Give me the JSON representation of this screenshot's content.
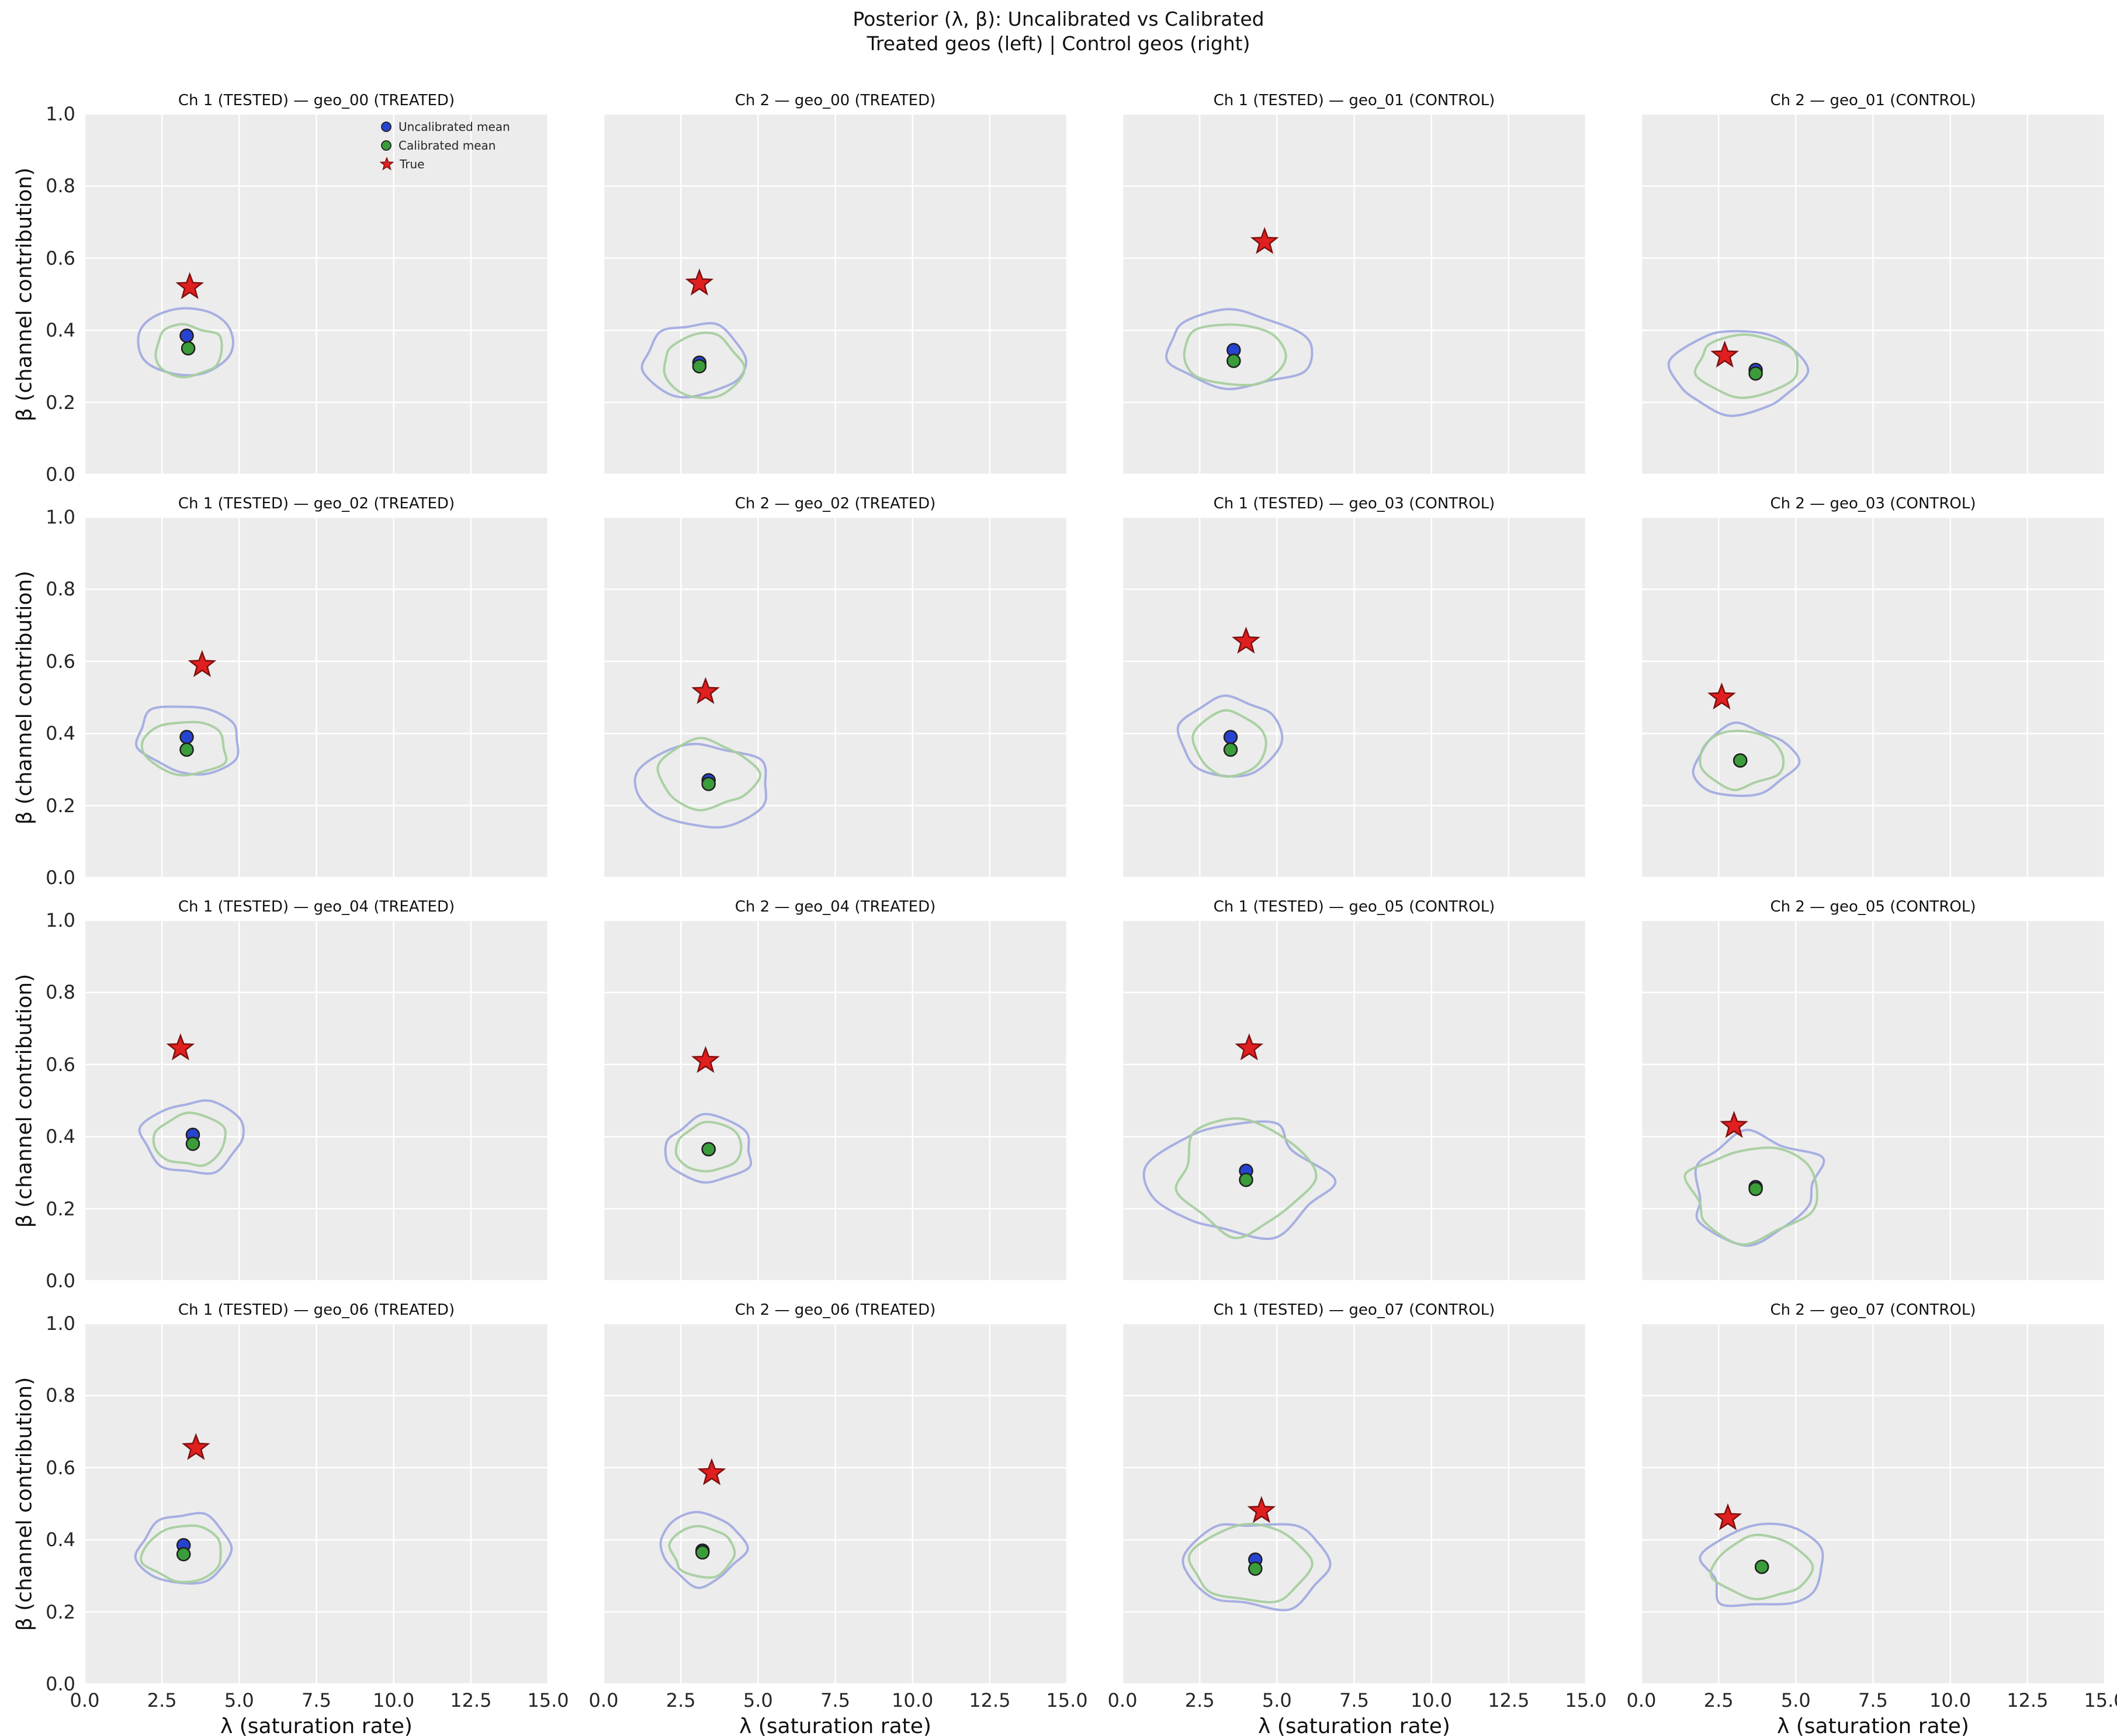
{
  "colors": {
    "plot_bg": "#ececec",
    "grid": "#ffffff",
    "uncal_mean": "#2743d0",
    "cal_mean": "#3a9d3a",
    "true_marker": "#e01f1f",
    "true_edge": "#7e1010",
    "marker_edge": "#1f1f1f",
    "uncal_contour": "#a3ace0",
    "cal_contour": "#a6cf9f",
    "text": "#262626"
  },
  "chart_data": {
    "type": "scatter",
    "grid_rows": 4,
    "grid_cols": 4,
    "title": "Posterior (λ, β): Uncalibrated vs Calibrated",
    "subtitle": "Treated geos (left) | Control geos (right)",
    "xlabel": "λ (saturation rate)",
    "ylabel": "β (channel contribution)",
    "xlim": [
      0,
      15
    ],
    "ylim": [
      0.0,
      1.0
    ],
    "xticks": [
      "0.0",
      "2.5",
      "5.0",
      "7.5",
      "10.0",
      "12.5",
      "15.0"
    ],
    "yticks": [
      "0.0",
      "0.2",
      "0.4",
      "0.6",
      "0.8",
      "1.0"
    ],
    "grid_on": true,
    "legend": [
      "Uncalibrated mean",
      "Calibrated mean",
      "True"
    ],
    "legend_position": "upper-right-of-first-subplot",
    "subplots": [
      {
        "title": "Ch 1 (TESTED) — geo_00 (TREATED)",
        "uncal_mean": [
          3.3,
          0.385
        ],
        "cal_mean": [
          3.35,
          0.35
        ],
        "true": [
          3.4,
          0.52
        ],
        "uncal_contour": {
          "c": [
            3.25,
            0.365
          ],
          "rx": 1.55,
          "ry": 0.095,
          "seed": 11,
          "wob": 0.14
        },
        "cal_contour": {
          "c": [
            3.35,
            0.345
          ],
          "rx": 1.15,
          "ry": 0.07,
          "seed": 12,
          "wob": 0.14
        }
      },
      {
        "title": "Ch 2 — geo_00 (TREATED)",
        "uncal_mean": [
          3.1,
          0.31
        ],
        "cal_mean": [
          3.1,
          0.3
        ],
        "true": [
          3.1,
          0.53
        ],
        "uncal_contour": {
          "c": [
            2.95,
            0.315
          ],
          "rx": 1.7,
          "ry": 0.1,
          "seed": 21,
          "wob": 0.16
        },
        "cal_contour": {
          "c": [
            3.15,
            0.3
          ],
          "rx": 1.35,
          "ry": 0.085,
          "seed": 22,
          "wob": 0.16
        }
      },
      {
        "title": "Ch 1 (TESTED) — geo_01 (CONTROL)",
        "uncal_mean": [
          3.6,
          0.345
        ],
        "cal_mean": [
          3.6,
          0.315
        ],
        "true": [
          4.6,
          0.645
        ],
        "uncal_contour": {
          "c": [
            3.7,
            0.345
          ],
          "rx": 2.3,
          "ry": 0.1,
          "seed": 31,
          "wob": 0.17
        },
        "cal_contour": {
          "c": [
            3.6,
            0.33
          ],
          "rx": 1.75,
          "ry": 0.085,
          "seed": 32,
          "wob": 0.15
        }
      },
      {
        "title": "Ch 2 — geo_01 (CONTROL)",
        "uncal_mean": [
          3.7,
          0.29
        ],
        "cal_mean": [
          3.7,
          0.28
        ],
        "true": [
          2.7,
          0.33
        ],
        "uncal_contour": {
          "c": [
            3.1,
            0.285
          ],
          "rx": 2.05,
          "ry": 0.115,
          "seed": 41,
          "wob": 0.17
        },
        "cal_contour": {
          "c": [
            3.4,
            0.3
          ],
          "rx": 1.6,
          "ry": 0.085,
          "seed": 42,
          "wob": 0.15
        }
      },
      {
        "title": "Ch 1 (TESTED) — geo_02 (TREATED)",
        "uncal_mean": [
          3.3,
          0.39
        ],
        "cal_mean": [
          3.3,
          0.355
        ],
        "true": [
          3.8,
          0.59
        ],
        "uncal_contour": {
          "c": [
            3.4,
            0.385
          ],
          "rx": 1.7,
          "ry": 0.095,
          "seed": 51,
          "wob": 0.15
        },
        "cal_contour": {
          "c": [
            3.3,
            0.36
          ],
          "rx": 1.3,
          "ry": 0.075,
          "seed": 52,
          "wob": 0.14
        }
      },
      {
        "title": "Ch 2 — geo_02 (TREATED)",
        "uncal_mean": [
          3.4,
          0.27
        ],
        "cal_mean": [
          3.4,
          0.26
        ],
        "true": [
          3.3,
          0.515
        ],
        "uncal_contour": {
          "c": [
            3.2,
            0.26
          ],
          "rx": 2.0,
          "ry": 0.115,
          "seed": 61,
          "wob": 0.17
        },
        "cal_contour": {
          "c": [
            3.35,
            0.285
          ],
          "rx": 1.6,
          "ry": 0.09,
          "seed": 62,
          "wob": 0.15
        }
      },
      {
        "title": "Ch 1 (TESTED) — geo_03 (CONTROL)",
        "uncal_mean": [
          3.5,
          0.39
        ],
        "cal_mean": [
          3.5,
          0.355
        ],
        "true": [
          4.0,
          0.655
        ],
        "uncal_contour": {
          "c": [
            3.5,
            0.39
          ],
          "rx": 1.55,
          "ry": 0.11,
          "seed": 71,
          "wob": 0.15
        },
        "cal_contour": {
          "c": [
            3.5,
            0.37
          ],
          "rx": 1.25,
          "ry": 0.085,
          "seed": 72,
          "wob": 0.14
        }
      },
      {
        "title": "Ch 2 — geo_03 (CONTROL)",
        "uncal_mean": [
          3.2,
          0.325
        ],
        "cal_mean": [
          3.2,
          0.325
        ],
        "true": [
          2.6,
          0.5
        ],
        "uncal_contour": {
          "c": [
            3.3,
            0.32
          ],
          "rx": 1.65,
          "ry": 0.1,
          "seed": 81,
          "wob": 0.15
        },
        "cal_contour": {
          "c": [
            3.2,
            0.33
          ],
          "rx": 1.3,
          "ry": 0.08,
          "seed": 82,
          "wob": 0.14
        }
      },
      {
        "title": "Ch 1 (TESTED) — geo_04 (TREATED)",
        "uncal_mean": [
          3.5,
          0.405
        ],
        "cal_mean": [
          3.5,
          0.38
        ],
        "true": [
          3.1,
          0.645
        ],
        "uncal_contour": {
          "c": [
            3.5,
            0.4
          ],
          "rx": 1.55,
          "ry": 0.1,
          "seed": 91,
          "wob": 0.15
        },
        "cal_contour": {
          "c": [
            3.45,
            0.39
          ],
          "rx": 1.1,
          "ry": 0.07,
          "seed": 92,
          "wob": 0.14
        }
      },
      {
        "title": "Ch 2 — geo_04 (TREATED)",
        "uncal_mean": [
          3.4,
          0.365
        ],
        "cal_mean": [
          3.4,
          0.365
        ],
        "true": [
          3.3,
          0.61
        ],
        "uncal_contour": {
          "c": [
            3.4,
            0.36
          ],
          "rx": 1.45,
          "ry": 0.09,
          "seed": 101,
          "wob": 0.15
        },
        "cal_contour": {
          "c": [
            3.4,
            0.37
          ],
          "rx": 1.0,
          "ry": 0.065,
          "seed": 102,
          "wob": 0.14
        }
      },
      {
        "title": "Ch 1 (TESTED) — geo_05 (CONTROL)",
        "uncal_mean": [
          4.0,
          0.305
        ],
        "cal_mean": [
          4.0,
          0.28
        ],
        "true": [
          4.1,
          0.645
        ],
        "uncal_contour": {
          "c": [
            3.6,
            0.28
          ],
          "rx": 2.7,
          "ry": 0.155,
          "seed": 111,
          "wob": 0.22
        },
        "cal_contour": {
          "c": [
            3.9,
            0.285
          ],
          "rx": 2.25,
          "ry": 0.14,
          "seed": 112,
          "wob": 0.22
        }
      },
      {
        "title": "Ch 2 — geo_05 (CONTROL)",
        "uncal_mean": [
          3.7,
          0.26
        ],
        "cal_mean": [
          3.7,
          0.255
        ],
        "true": [
          3.0,
          0.43
        ],
        "uncal_contour": {
          "c": [
            3.7,
            0.27
          ],
          "rx": 2.3,
          "ry": 0.145,
          "seed": 121,
          "wob": 0.22
        },
        "cal_contour": {
          "c": [
            3.5,
            0.25
          ],
          "rx": 2.0,
          "ry": 0.135,
          "seed": 122,
          "wob": 0.22
        }
      },
      {
        "title": "Ch 1 (TESTED) — geo_06 (TREATED)",
        "uncal_mean": [
          3.2,
          0.385
        ],
        "cal_mean": [
          3.2,
          0.36
        ],
        "true": [
          3.6,
          0.655
        ],
        "uncal_contour": {
          "c": [
            3.3,
            0.375
          ],
          "rx": 1.6,
          "ry": 0.095,
          "seed": 131,
          "wob": 0.15
        },
        "cal_contour": {
          "c": [
            3.2,
            0.36
          ],
          "rx": 1.25,
          "ry": 0.075,
          "seed": 132,
          "wob": 0.14
        }
      },
      {
        "title": "Ch 2 — geo_06 (TREATED)",
        "uncal_mean": [
          3.2,
          0.37
        ],
        "cal_mean": [
          3.2,
          0.365
        ],
        "true": [
          3.5,
          0.585
        ],
        "uncal_contour": {
          "c": [
            3.2,
            0.375
          ],
          "rx": 1.35,
          "ry": 0.095,
          "seed": 141,
          "wob": 0.15
        },
        "cal_contour": {
          "c": [
            3.2,
            0.365
          ],
          "rx": 1.0,
          "ry": 0.07,
          "seed": 142,
          "wob": 0.14
        }
      },
      {
        "title": "Ch 1 (TESTED) — geo_07 (CONTROL)",
        "uncal_mean": [
          4.3,
          0.345
        ],
        "cal_mean": [
          4.3,
          0.32
        ],
        "true": [
          4.5,
          0.48
        ],
        "uncal_contour": {
          "c": [
            4.4,
            0.33
          ],
          "rx": 2.55,
          "ry": 0.12,
          "seed": 151,
          "wob": 0.2
        },
        "cal_contour": {
          "c": [
            4.2,
            0.33
          ],
          "rx": 1.95,
          "ry": 0.1,
          "seed": 152,
          "wob": 0.16
        }
      },
      {
        "title": "Ch 2 — geo_07 (CONTROL)",
        "uncal_mean": [
          3.9,
          0.325
        ],
        "cal_mean": [
          3.9,
          0.325
        ],
        "true": [
          2.8,
          0.46
        ],
        "uncal_contour": {
          "c": [
            4.0,
            0.32
          ],
          "rx": 1.95,
          "ry": 0.115,
          "seed": 161,
          "wob": 0.16
        },
        "cal_contour": {
          "c": [
            3.9,
            0.325
          ],
          "rx": 1.5,
          "ry": 0.09,
          "seed": 162,
          "wob": 0.15
        }
      }
    ]
  }
}
